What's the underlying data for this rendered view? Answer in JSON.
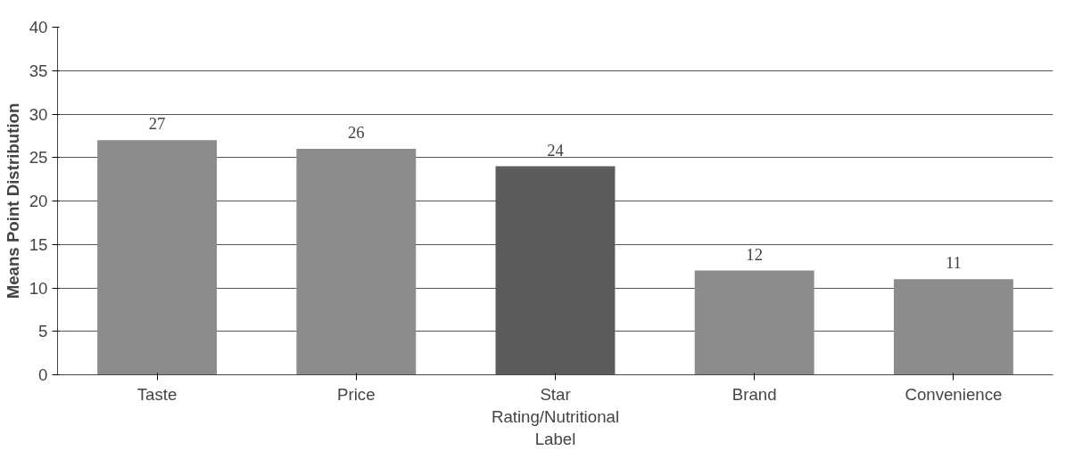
{
  "chart_data": {
    "type": "bar",
    "ylabel": "Means Point Distribution",
    "categories": [
      "Taste",
      "Price",
      "Star Rating/Nutritional Label",
      "Brand",
      "Convenience"
    ],
    "values": [
      27,
      26,
      24,
      12,
      11
    ],
    "colors": [
      "#8c8c8c",
      "#8c8c8c",
      "#5c5c5c",
      "#8c8c8c",
      "#8c8c8c"
    ],
    "ylim": [
      0,
      40
    ],
    "yticks": [
      0,
      5,
      10,
      15,
      20,
      25,
      30,
      35,
      40
    ],
    "grid": "y",
    "data_labels": true
  }
}
